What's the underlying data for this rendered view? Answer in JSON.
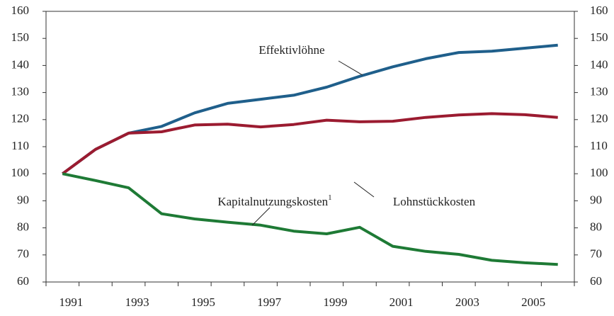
{
  "chart_data": {
    "type": "line",
    "categories": [
      "1991",
      null,
      "1993",
      null,
      "1995",
      null,
      "1997",
      null,
      "1999",
      null,
      "2001",
      null,
      "2003",
      null,
      "2005",
      null
    ],
    "series": [
      {
        "name": "Effektivlöhne",
        "color": "#1f5f8b",
        "values": [
          100,
          109,
          115,
          117.5,
          122.5,
          126,
          127.5,
          129,
          132,
          136,
          139.5,
          142.5,
          144.8,
          145.3,
          146.4,
          147.5
        ]
      },
      {
        "name": "Lohnstückkosten",
        "color": "#9b1b30",
        "values": [
          100,
          109,
          115,
          115.5,
          118,
          118.3,
          117.3,
          118.2,
          119.8,
          119.2,
          119.4,
          120.8,
          121.7,
          122.2,
          121.8,
          120.8
        ]
      },
      {
        "name": "Kapitalnutzungskosten",
        "note": "1",
        "color": "#1e7a35",
        "values": [
          100,
          97.5,
          94.8,
          85.2,
          83.3,
          82.1,
          81,
          78.8,
          77.8,
          80.2,
          73.2,
          71.3,
          70.2,
          68,
          67.1,
          66.5
        ]
      }
    ],
    "ylim": [
      60,
      160
    ],
    "yticks": [
      60,
      70,
      80,
      90,
      100,
      110,
      120,
      130,
      140,
      150,
      160
    ],
    "y2lim": [
      60,
      160
    ],
    "y2ticks": [
      60,
      70,
      80,
      90,
      100,
      110,
      120,
      130,
      140,
      150,
      160
    ]
  }
}
